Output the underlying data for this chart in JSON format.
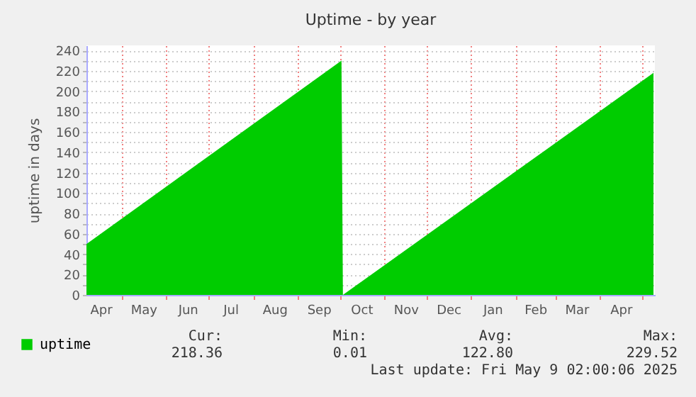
{
  "chart_data": {
    "type": "area",
    "title": "Uptime - by year",
    "ylabel": "uptime in days",
    "x": [
      "2024-04-06",
      "2024-10-02",
      "2024-10-03",
      "2025-05-09"
    ],
    "series": [
      {
        "name": "uptime",
        "color": "#00cc00",
        "values": [
          50,
          230,
          0,
          218
        ]
      }
    ],
    "xlim": [
      "2024-04-06",
      "2025-05-10"
    ],
    "xticks": [
      {
        "value": "2024-04-16",
        "label": "Apr"
      },
      {
        "value": "2024-05-01",
        "label": null
      },
      {
        "value": "2024-05-16",
        "label": "May"
      },
      {
        "value": "2024-06-01",
        "label": null
      },
      {
        "value": "2024-06-16",
        "label": "Jun"
      },
      {
        "value": "2024-07-01",
        "label": null
      },
      {
        "value": "2024-07-16",
        "label": "Jul"
      },
      {
        "value": "2024-08-01",
        "label": null
      },
      {
        "value": "2024-08-16",
        "label": "Aug"
      },
      {
        "value": "2024-09-01",
        "label": null
      },
      {
        "value": "2024-09-16",
        "label": "Sep"
      },
      {
        "value": "2024-10-01",
        "label": null
      },
      {
        "value": "2024-10-16",
        "label": "Oct"
      },
      {
        "value": "2024-11-01",
        "label": null
      },
      {
        "value": "2024-11-16",
        "label": "Nov"
      },
      {
        "value": "2024-12-01",
        "label": null
      },
      {
        "value": "2024-12-16",
        "label": "Dec"
      },
      {
        "value": "2025-01-01",
        "label": null
      },
      {
        "value": "2025-01-16",
        "label": "Jan"
      },
      {
        "value": "2025-02-01",
        "label": null
      },
      {
        "value": "2025-02-15",
        "label": "Feb"
      },
      {
        "value": "2025-03-01",
        "label": null
      },
      {
        "value": "2025-03-16",
        "label": "Mar"
      },
      {
        "value": "2025-04-01",
        "label": null
      },
      {
        "value": "2025-04-16",
        "label": "Apr"
      },
      {
        "value": "2025-05-01",
        "label": null
      }
    ],
    "ylim": [
      0,
      245
    ],
    "yticks": [
      0,
      {
        "value": 10,
        "label": null
      },
      20,
      {
        "value": 30,
        "label": null
      },
      40,
      {
        "value": 50,
        "label": null
      },
      60,
      {
        "value": 70,
        "label": null
      },
      80,
      {
        "value": 90,
        "label": null
      },
      100,
      {
        "value": 110,
        "label": null
      },
      120,
      {
        "value": 130,
        "label": null
      },
      140,
      {
        "value": 150,
        "label": null
      },
      160,
      {
        "value": 170,
        "label": null
      },
      180,
      {
        "value": 190,
        "label": null
      },
      200,
      {
        "value": 210,
        "label": null
      },
      220,
      {
        "value": 230,
        "label": null
      },
      240
    ],
    "grid": true,
    "legend": "bottom left",
    "annotations": [
      "Cur:",
      "Min:",
      "Avg:",
      "Max:",
      "218.36",
      "0.01",
      "122.80",
      "229.52",
      "Last update:  Fri May  9 02:00:06 2025"
    ]
  }
}
